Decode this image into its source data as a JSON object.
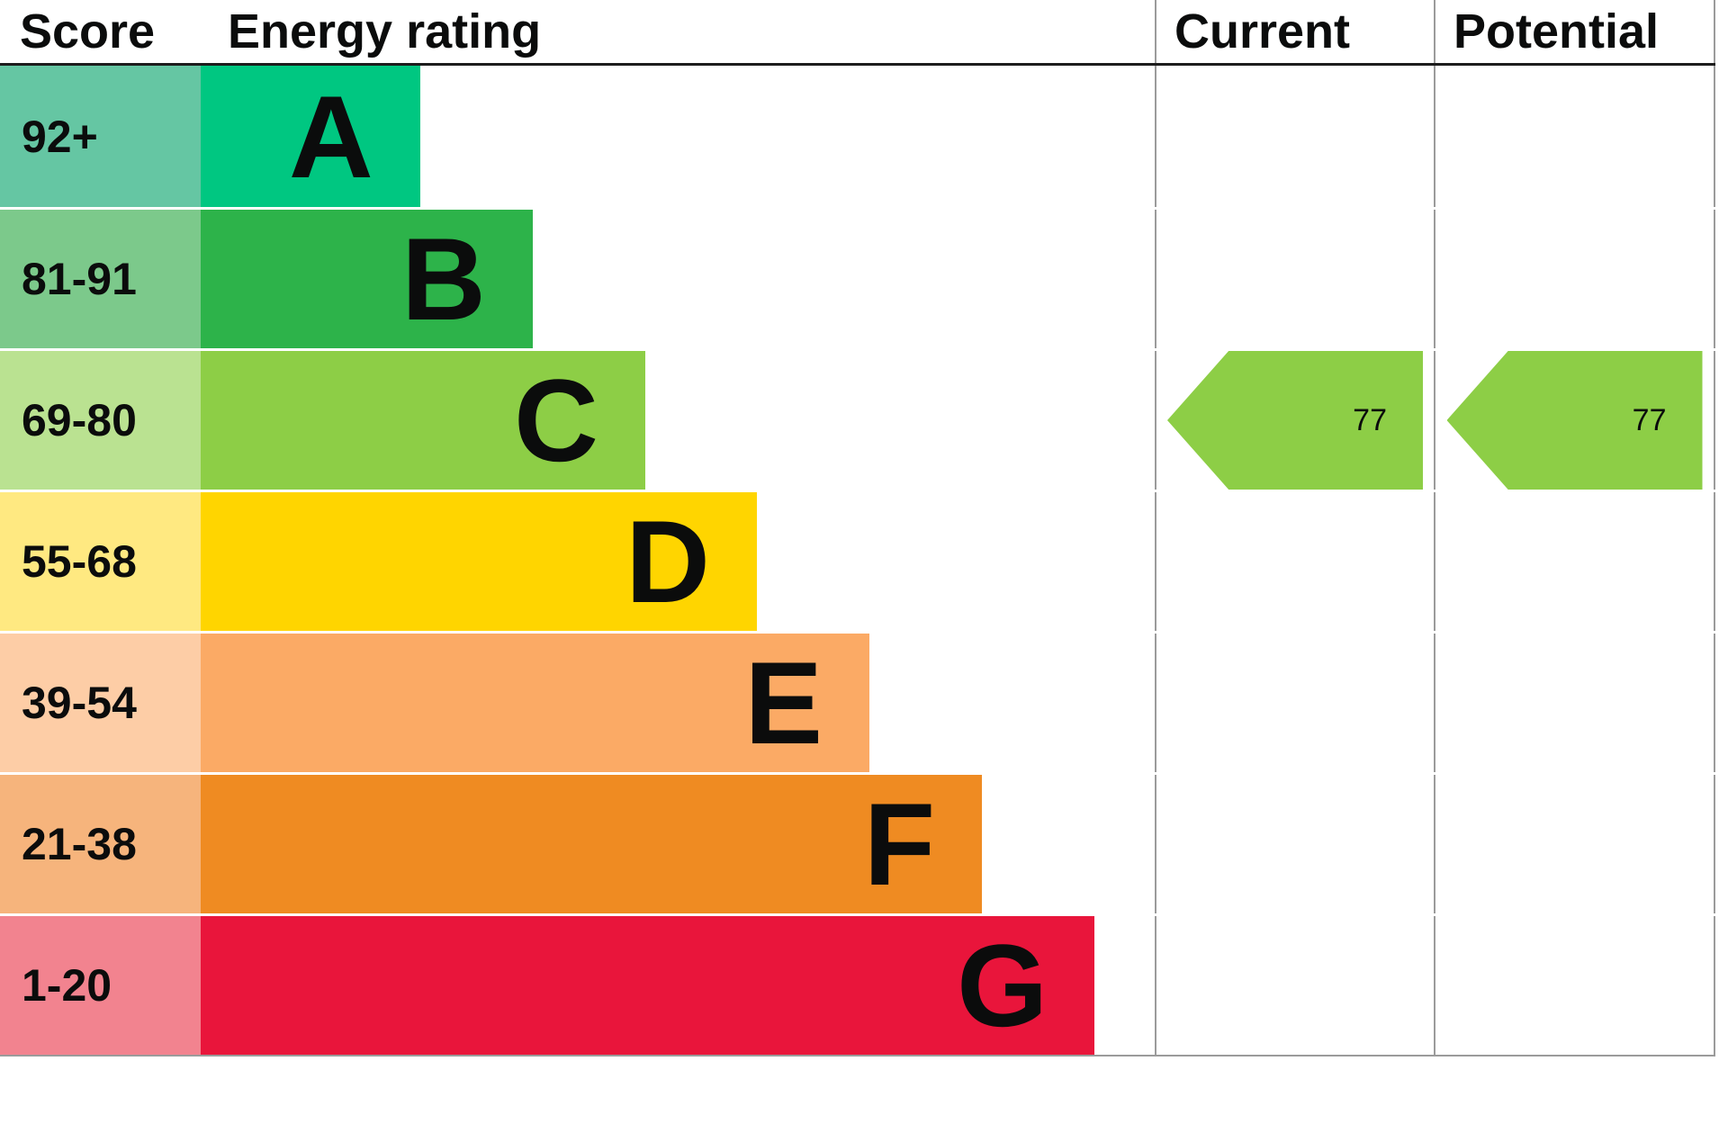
{
  "chart_data": {
    "type": "bar",
    "title": "EPC energy efficiency rating chart",
    "header": {
      "score": "Score",
      "energy_rating": "Energy rating",
      "current": "Current",
      "potential": "Potential"
    },
    "bands": [
      {
        "score": "92+",
        "letter": "A",
        "color": "#00c781",
        "score_color": "#65c6a3",
        "width_pct": 23.0
      },
      {
        "score": "81-91",
        "letter": "B",
        "color": "#2db34a",
        "score_color": "#7cc98b",
        "width_pct": 34.8
      },
      {
        "score": "69-80",
        "letter": "C",
        "color": "#8dce46",
        "score_color": "#bae291",
        "width_pct": 46.6
      },
      {
        "score": "55-68",
        "letter": "D",
        "color": "#ffd500",
        "score_color": "#ffe981",
        "width_pct": 58.3
      },
      {
        "score": "39-54",
        "letter": "E",
        "color": "#fbaa65",
        "score_color": "#fdcda6",
        "width_pct": 70.1
      },
      {
        "score": "21-38",
        "letter": "F",
        "color": "#ef8b22",
        "score_color": "#f6b47c",
        "width_pct": 81.9
      },
      {
        "score": "1-20",
        "letter": "G",
        "color": "#e9153b",
        "score_color": "#f2838f",
        "width_pct": 93.7
      }
    ],
    "current": {
      "value": 77,
      "band": "C",
      "color": "#8dce46"
    },
    "potential": {
      "value": 77,
      "band": "C",
      "color": "#8dce46"
    },
    "layout": {
      "grid": "column dividers only",
      "arrow_direction": "left"
    }
  }
}
